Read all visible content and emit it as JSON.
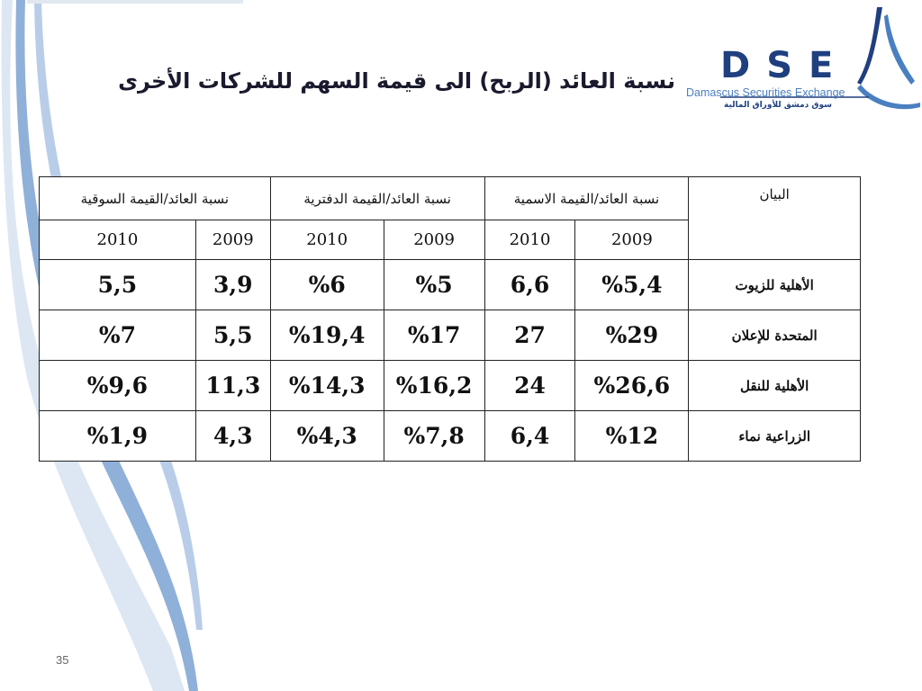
{
  "slide": {
    "title": "نسبة العائد (الربح) الى قيمة السهم للشركات الأخرى",
    "page_number": "35"
  },
  "logo": {
    "letters": "DSE",
    "subtitle": "Damascus Securities Exchange",
    "arabic": "سوق دمشق للأوراق المالية",
    "colors": {
      "dark": "#1f3f7f",
      "light": "#4a7fc0"
    }
  },
  "table": {
    "header_groups": {
      "label": "البيان",
      "nominal": "نسبة العائد/القيمة الاسمية",
      "book": "نسبة العائد/القيمة الدفترية",
      "market": "نسبة العائد/القيمة السوقية"
    },
    "years": [
      "2009",
      "2010",
      "2009",
      "2010",
      "2009",
      "2010"
    ],
    "rows": [
      {
        "name": "الأهلية للزيوت",
        "values": [
          "%5,4",
          "6,6",
          "%5",
          "%6",
          "3,9",
          "5,5"
        ]
      },
      {
        "name": "المتحدة للإعلان",
        "values": [
          "%29",
          "27",
          "%17",
          "%19,4",
          "5,5",
          "%7"
        ]
      },
      {
        "name": "الأهلية للنقل",
        "values": [
          "%26,6",
          "24",
          "%16,2",
          "%14,3",
          "11,3",
          "%9,6"
        ]
      },
      {
        "name": "الزراعية نماء",
        "values": [
          "%12",
          "6,4",
          "%7,8",
          "%4,3",
          "4,3",
          "%1,9"
        ]
      }
    ]
  }
}
